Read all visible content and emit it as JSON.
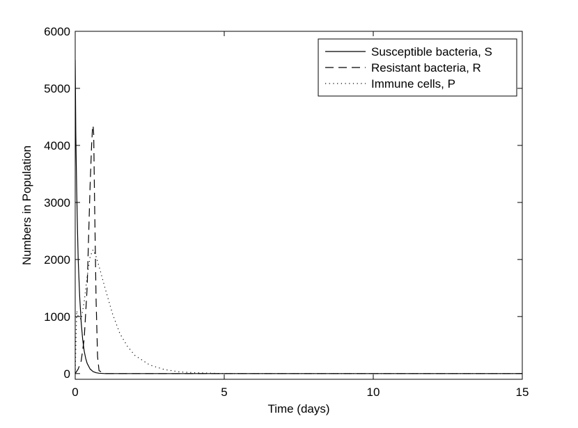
{
  "chart_data": {
    "type": "line",
    "title": "",
    "xlabel": "Time (days)",
    "ylabel": "Numbers in Population",
    "xlim": [
      0,
      15
    ],
    "ylim": [
      -100,
      6000
    ],
    "x_ticks": [
      0,
      5,
      10,
      15
    ],
    "y_ticks": [
      0,
      1000,
      2000,
      3000,
      4000,
      5000,
      6000
    ],
    "grid": false,
    "legend_position": "top-right",
    "series": [
      {
        "name": "Susceptible bacteria, S",
        "style": "solid",
        "color": "#000000",
        "x": [
          0,
          0.02,
          0.05,
          0.08,
          0.1,
          0.15,
          0.2,
          0.25,
          0.3,
          0.35,
          0.4,
          0.5,
          0.6,
          0.7,
          0.8,
          1.0,
          2.0,
          5.0,
          10.0,
          15.0
        ],
        "y": [
          5500,
          4200,
          3200,
          2450,
          2000,
          1350,
          900,
          600,
          400,
          270,
          180,
          80,
          35,
          15,
          6,
          0,
          0,
          0,
          0,
          0
        ]
      },
      {
        "name": "Resistant bacteria, R",
        "style": "dashed",
        "color": "#000000",
        "x": [
          0,
          0.1,
          0.2,
          0.3,
          0.4,
          0.45,
          0.5,
          0.55,
          0.58,
          0.6,
          0.62,
          0.65,
          0.7,
          0.75,
          0.8,
          1.0,
          2.0,
          5.0,
          10.0,
          15.0
        ],
        "y": [
          0,
          80,
          220,
          600,
          1500,
          2400,
          3300,
          4000,
          4300,
          4350,
          4200,
          3000,
          1300,
          300,
          50,
          0,
          0,
          0,
          0,
          0
        ]
      },
      {
        "name": "Immune cells, P",
        "style": "dotted",
        "color": "#000000",
        "x": [
          0,
          0.05,
          0.1,
          0.2,
          0.3,
          0.4,
          0.5,
          0.6,
          0.7,
          0.8,
          1.0,
          1.25,
          1.5,
          1.75,
          2.0,
          2.5,
          3.0,
          3.5,
          4.0,
          5.0,
          10.0,
          15.0
        ],
        "y": [
          0,
          1100,
          1000,
          950,
          1250,
          1700,
          2050,
          2170,
          2050,
          1880,
          1500,
          1050,
          700,
          480,
          320,
          150,
          70,
          30,
          15,
          0,
          0,
          0
        ]
      }
    ]
  }
}
